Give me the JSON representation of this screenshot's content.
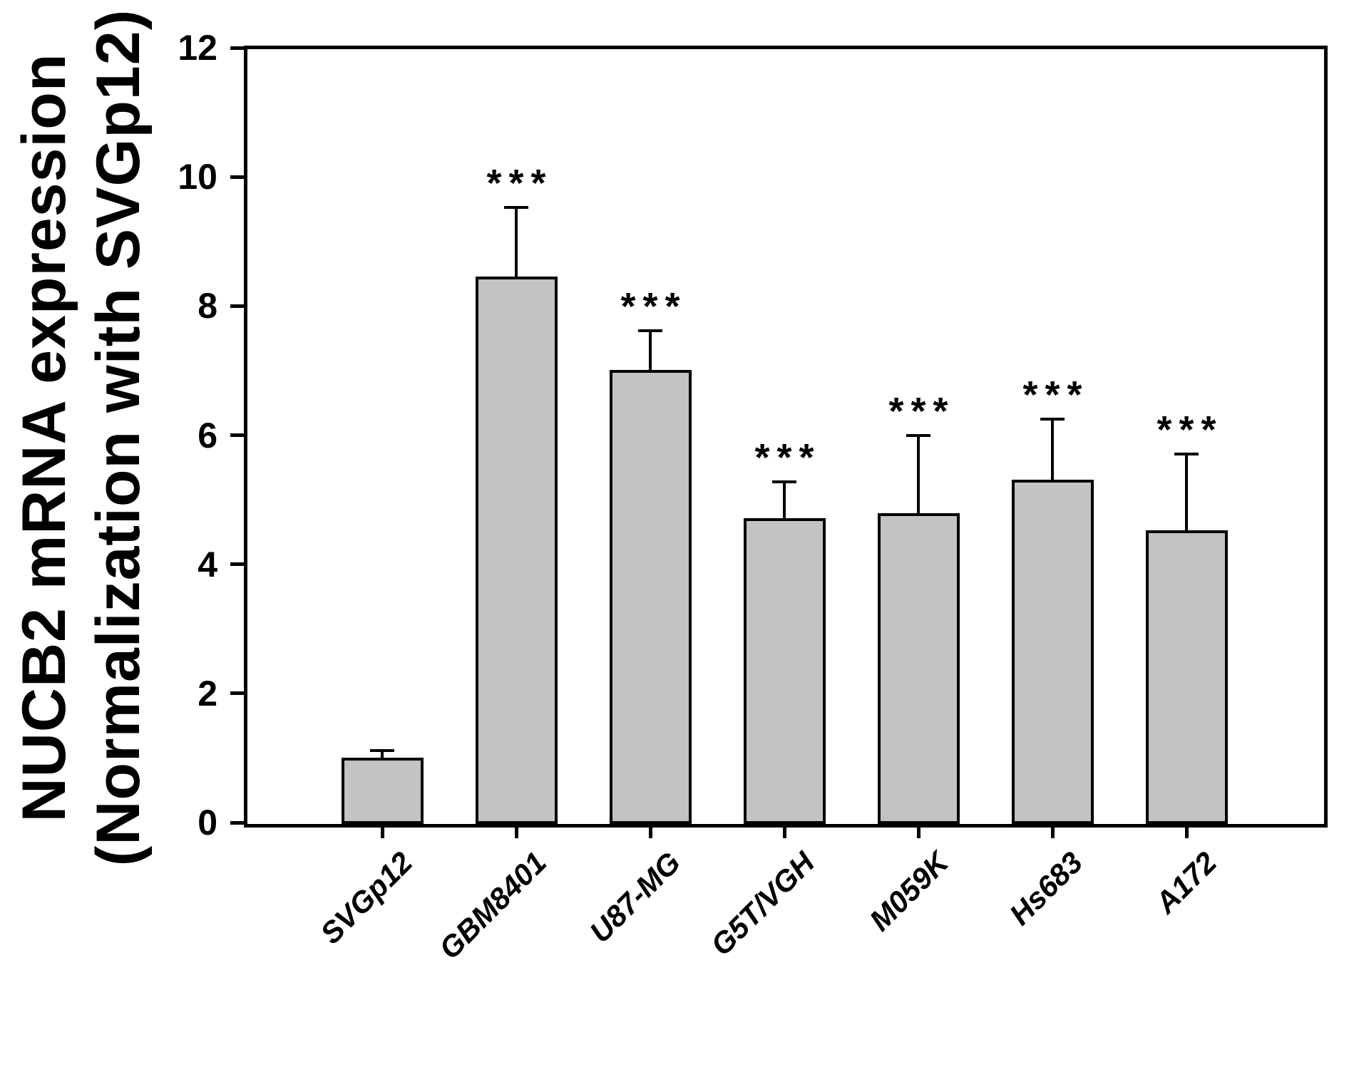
{
  "figure": {
    "background_color": "#ffffff",
    "bar_fill_color": "#c3c3c3",
    "line_color": "#000000"
  },
  "chart_data": {
    "type": "bar",
    "title": "",
    "ylabel_line1": "NUCB2 mRNA expression",
    "ylabel_line2": "(Normalization with SVGp12)",
    "xlabel": "",
    "categories": [
      "SVGp12",
      "GBM8401",
      "U87-MG",
      "G5T/VGH",
      "M059K",
      "Hs683",
      "A172"
    ],
    "values": [
      1.0,
      8.46,
      7.01,
      4.71,
      4.79,
      5.31,
      4.53
    ],
    "errors": [
      0.12,
      1.07,
      0.61,
      0.57,
      1.21,
      0.94,
      1.18
    ],
    "significance": [
      "",
      "***",
      "***",
      "***",
      "***",
      "***",
      "***"
    ],
    "error_bar_direction": "up",
    "ylim": [
      0,
      12
    ],
    "yticks": [
      "0",
      "2",
      "4",
      "6",
      "8",
      "10",
      "12"
    ],
    "grid": false,
    "legend": null
  }
}
